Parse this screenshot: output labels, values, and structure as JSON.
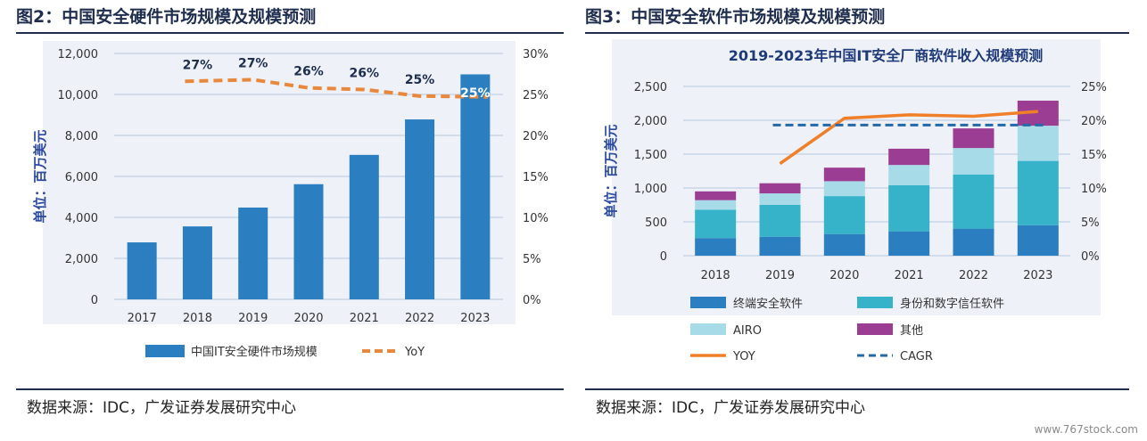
{
  "left": {
    "fig_title": "图2：中国安全硬件市场规模及规模预测",
    "source": "数据来源：IDC，广发证券发展研究中心",
    "chart_data": {
      "type": "bar",
      "title": "",
      "categories": [
        "2017",
        "2018",
        "2019",
        "2020",
        "2021",
        "2022",
        "2023"
      ],
      "ylabel": "单位：百万美元",
      "ylim": [
        0,
        12000
      ],
      "yticks": [
        "0",
        "2,000",
        "4,000",
        "6,000",
        "8,000",
        "10,000",
        "12,000"
      ],
      "y2lim": [
        0,
        30
      ],
      "y2ticks": [
        "0%",
        "5%",
        "10%",
        "15%",
        "20%",
        "25%",
        "30%"
      ],
      "series": [
        {
          "name": "中国IT安全硬件市场规模",
          "type": "bar",
          "values": [
            2780,
            3560,
            4480,
            5620,
            7050,
            8780,
            10980
          ],
          "color": "#2b7fc0"
        },
        {
          "name": "YoY",
          "type": "line",
          "axis": "secondary",
          "style": "dashed",
          "values": [
            null,
            26.6,
            26.8,
            25.8,
            25.6,
            24.8,
            24.7
          ],
          "labels": [
            "",
            "27%",
            "27%",
            "26%",
            "26%",
            "25%",
            "25%"
          ],
          "color": "#e8883d"
        }
      ],
      "grid": true,
      "legend": "bottom"
    }
  },
  "right": {
    "fig_title": "图3：中国安全软件市场规模及规模预测",
    "source": "数据来源：IDC，广发证券发展研究中心",
    "watermark": "www.767stock.com",
    "chart_data": {
      "type": "bar",
      "title": "2019-2023年中国IT安全厂商软件收入规模预测",
      "categories": [
        "2018",
        "2019",
        "2020",
        "2021",
        "2022",
        "2023"
      ],
      "ylabel": "单位：百万美元",
      "ylim": [
        0,
        2500
      ],
      "yticks": [
        "0",
        "500",
        "1,000",
        "1,500",
        "2,000",
        "2,500"
      ],
      "y2lim": [
        0,
        25
      ],
      "y2ticks": [
        "0%",
        "5%",
        "10%",
        "15%",
        "20%",
        "25%"
      ],
      "stacked": true,
      "series": [
        {
          "name": "终端安全软件",
          "values": [
            260,
            280,
            320,
            360,
            400,
            450
          ],
          "color": "#2b7fc0"
        },
        {
          "name": "身份和数字信任软件",
          "values": [
            420,
            470,
            560,
            680,
            800,
            950
          ],
          "color": "#36b3c9"
        },
        {
          "name": "AIRO",
          "values": [
            140,
            170,
            220,
            300,
            390,
            520
          ],
          "color": "#a8dbe8"
        },
        {
          "name": "其他",
          "values": [
            130,
            150,
            200,
            240,
            290,
            370
          ],
          "color": "#9b3d92"
        },
        {
          "name": "YOY",
          "type": "line",
          "axis": "secondary",
          "values": [
            null,
            13.6,
            20.3,
            20.8,
            20.6,
            21.3
          ],
          "color": "#f07f2a"
        },
        {
          "name": "CAGR",
          "type": "line",
          "axis": "secondary",
          "style": "dashed",
          "values": [
            null,
            19.3,
            19.3,
            19.3,
            19.3,
            19.3
          ],
          "color": "#2468a8"
        }
      ],
      "grid": true,
      "legend": "bottom"
    }
  }
}
